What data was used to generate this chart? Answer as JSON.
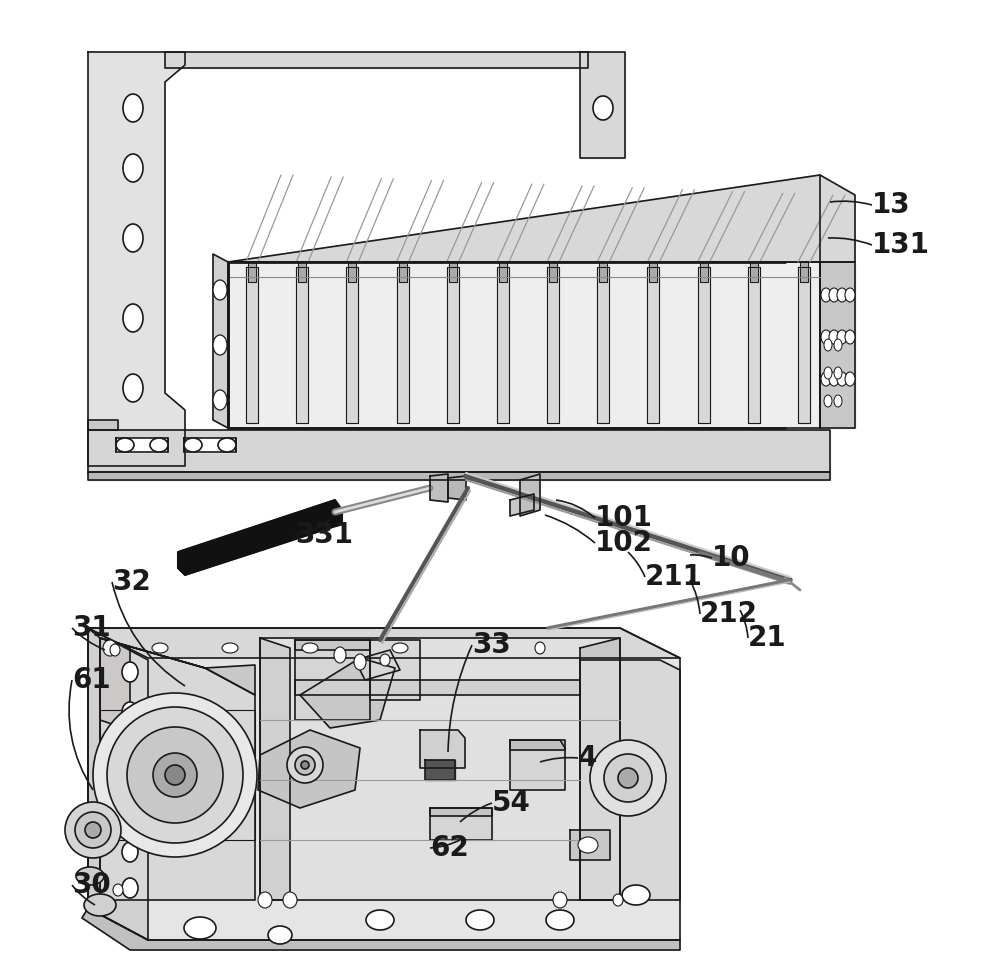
{
  "bg_color": "#ffffff",
  "lc": "#1a1a1a",
  "lw": 1.2,
  "lw_thick": 2.0,
  "fs_label": 20,
  "gray_light": "#e8e8e8",
  "gray_mid": "#d0d0d0",
  "gray_dark": "#b0b0b0",
  "black": "#111111",
  "labels": [
    [
      "13",
      865,
      205
    ],
    [
      "131",
      865,
      245
    ],
    [
      "101",
      590,
      518
    ],
    [
      "102",
      590,
      543
    ],
    [
      "331",
      295,
      533
    ],
    [
      "32",
      112,
      582
    ],
    [
      "31",
      72,
      628
    ],
    [
      "61",
      72,
      680
    ],
    [
      "30",
      72,
      885
    ],
    [
      "33",
      472,
      643
    ],
    [
      "10",
      710,
      560
    ],
    [
      "211",
      643,
      577
    ],
    [
      "212",
      700,
      612
    ],
    [
      "21",
      748,
      638
    ],
    [
      "4",
      578,
      758
    ],
    [
      "54",
      492,
      803
    ],
    [
      "62",
      430,
      848
    ]
  ]
}
